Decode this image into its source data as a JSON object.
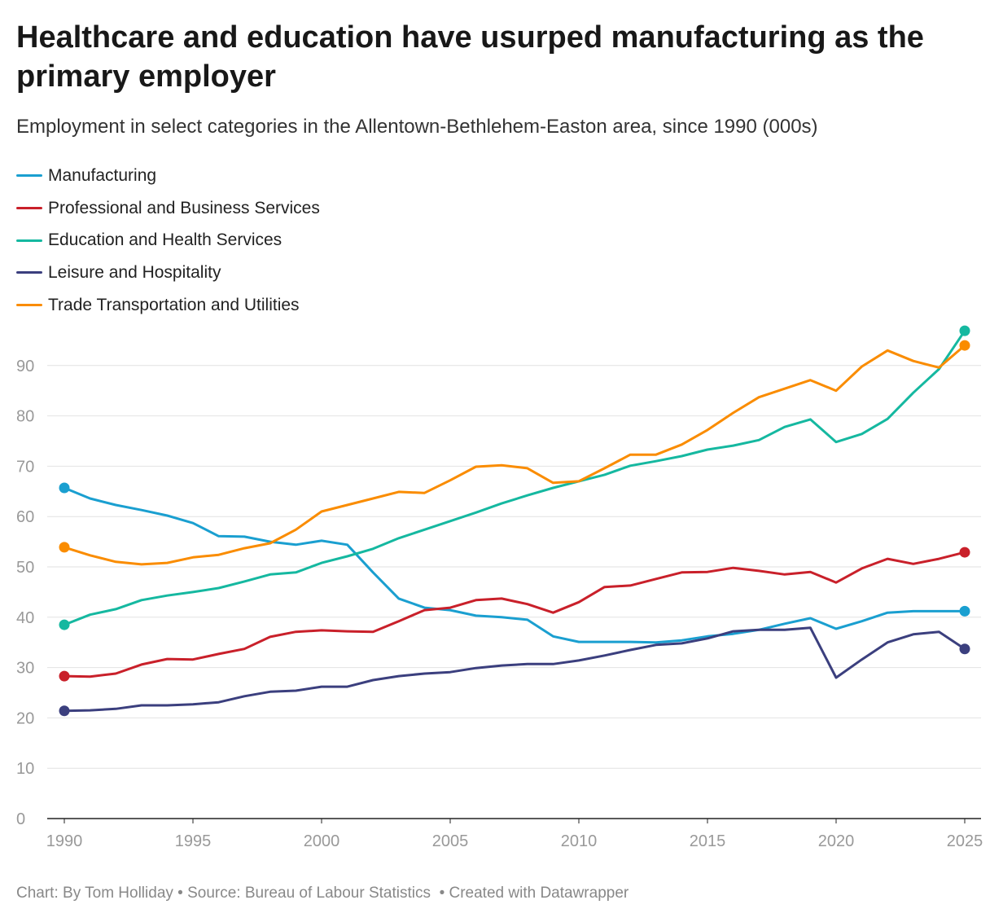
{
  "title": "Healthcare and education have usurped manufacturing as the primary employer",
  "subtitle": "Employment in select categories in the Allentown-Bethlehem-Easton area, since 1990 (000s)",
  "footer": {
    "byline": "Chart: By Tom Holliday",
    "source": "Source: Bureau of Labour Statistics",
    "credit": "Created with Datawrapper",
    "separator": "•"
  },
  "chart_data": {
    "type": "line",
    "title": "Healthcare and education have usurped manufacturing as the primary employer",
    "subtitle": "Employment in select categories in the Allentown-Bethlehem-Easton area, since 1990 (000s)",
    "xlim": [
      1990,
      2025
    ],
    "ylim": [
      0,
      97
    ],
    "x_ticks": [
      "1990",
      "1995",
      "2000",
      "2005",
      "2010",
      "2015",
      "2020",
      "2025"
    ],
    "y_ticks": [
      "0",
      "10",
      "20",
      "30",
      "40",
      "50",
      "60",
      "70",
      "80",
      "90"
    ],
    "grid": "horizontal",
    "legend": "top-left",
    "x": [
      1990,
      1991,
      1992,
      1993,
      1994,
      1995,
      1996,
      1997,
      1998,
      1999,
      2000,
      2001,
      2002,
      2003,
      2004,
      2005,
      2006,
      2007,
      2008,
      2009,
      2010,
      2011,
      2012,
      2013,
      2014,
      2015,
      2016,
      2017,
      2018,
      2019,
      2020,
      2021,
      2022,
      2023,
      2024,
      2025
    ],
    "series": [
      {
        "name": "Manufacturing",
        "color": "#1a9fd0",
        "values": [
          65.7,
          63.6,
          62.3,
          61.3,
          60.2,
          58.7,
          56.1,
          56.0,
          55.0,
          54.4,
          55.2,
          54.4,
          48.9,
          43.7,
          41.9,
          41.4,
          40.3,
          40.0,
          39.5,
          36.2,
          35.1,
          35.1,
          35.1,
          35.0,
          35.4,
          36.2,
          36.7,
          37.5,
          38.7,
          39.8,
          37.7,
          39.2,
          40.9,
          41.2,
          41.2,
          41.2
        ]
      },
      {
        "name": "Professional and Business Services",
        "color": "#c9202a",
        "values": [
          28.3,
          28.2,
          28.8,
          30.6,
          31.7,
          31.6,
          32.7,
          33.7,
          36.1,
          37.1,
          37.4,
          37.2,
          37.1,
          39.2,
          41.4,
          41.9,
          43.4,
          43.7,
          42.6,
          40.9,
          43.0,
          46.0,
          46.3,
          47.6,
          48.9,
          49.0,
          49.8,
          49.2,
          48.5,
          49.0,
          46.9,
          49.7,
          51.6,
          50.6,
          51.6,
          52.9
        ]
      },
      {
        "name": "Education and Health Services",
        "color": "#15b8a0",
        "values": [
          38.5,
          40.5,
          41.6,
          43.4,
          44.3,
          45.0,
          45.8,
          47.1,
          48.5,
          48.9,
          50.8,
          52.1,
          53.6,
          55.7,
          57.4,
          59.1,
          60.8,
          62.6,
          64.2,
          65.7,
          67.0,
          68.3,
          70.1,
          71.0,
          72.0,
          73.3,
          74.1,
          75.2,
          77.8,
          79.3,
          74.8,
          76.4,
          79.4,
          84.6,
          89.3,
          96.9
        ]
      },
      {
        "name": "Leisure and Hospitality",
        "color": "#3b3f7e",
        "values": [
          21.4,
          21.5,
          21.8,
          22.5,
          22.5,
          22.7,
          23.1,
          24.3,
          25.2,
          25.4,
          26.2,
          26.2,
          27.5,
          28.3,
          28.8,
          29.1,
          29.9,
          30.4,
          30.7,
          30.7,
          31.4,
          32.4,
          33.5,
          34.5,
          34.8,
          35.8,
          37.2,
          37.5,
          37.5,
          37.9,
          28.0,
          31.6,
          35.0,
          36.6,
          37.1,
          33.7
        ]
      },
      {
        "name": "Trade Transportation and Utilities",
        "color": "#fa8c00",
        "values": [
          53.9,
          52.3,
          51.0,
          50.5,
          50.8,
          51.9,
          52.4,
          53.7,
          54.7,
          57.4,
          61.0,
          62.3,
          63.6,
          64.9,
          64.7,
          67.2,
          69.9,
          70.2,
          69.6,
          66.7,
          67.0,
          69.6,
          72.3,
          72.3,
          74.3,
          77.2,
          80.6,
          83.7,
          85.4,
          87.1,
          85.0,
          89.8,
          93.0,
          90.9,
          89.6,
          94.0
        ]
      }
    ]
  }
}
